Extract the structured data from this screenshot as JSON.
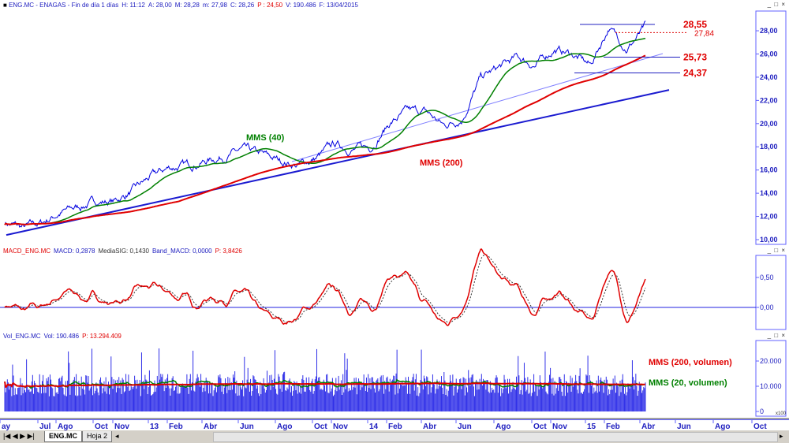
{
  "window": {
    "controls": "_ □ ×"
  },
  "price_panel": {
    "header": [
      {
        "t": "ENG.MC - ENAGAS - Fin de día 1 días",
        "c": "#2020c0"
      },
      {
        "t": "H: 11:12",
        "c": "#2020c0"
      },
      {
        "t": "A: 28,00",
        "c": "#2020c0"
      },
      {
        "t": "M: 28,28",
        "c": "#2020c0"
      },
      {
        "t": "m: 27,98",
        "c": "#2020c0"
      },
      {
        "t": "C: 28,26",
        "c": "#2020c0"
      },
      {
        "t": "P : 24,50",
        "c": "#e00000"
      },
      {
        "t": "V: 190.486",
        "c": "#2020c0"
      },
      {
        "t": "F: 13/04/2015",
        "c": "#2020c0"
      }
    ],
    "y_ticks": [
      "28,00",
      "26,00",
      "24,00",
      "22,00",
      "20,00",
      "18,00",
      "16,00",
      "14,00",
      "12,00",
      "10,00"
    ],
    "labels": {
      "mms40": "MMS (40)",
      "mms200": "MMS (200)",
      "l1": "28,55",
      "l2": "27,84",
      "l3": "25,73",
      "l4": "24,37"
    }
  },
  "macd_panel": {
    "header": [
      {
        "t": "MACD_ENG.MC",
        "c": "#e00000"
      },
      {
        "t": "MACD: 0,2878",
        "c": "#2020c0"
      },
      {
        "t": "MediaSIG: 0,1430",
        "c": "#333"
      },
      {
        "t": "Band_MACD: 0,0000",
        "c": "#2020c0"
      },
      {
        "t": "P: 3,8426",
        "c": "#e00000"
      }
    ],
    "y_ticks": [
      "0,50",
      "0,00"
    ]
  },
  "vol_panel": {
    "header": [
      {
        "t": "Vol_ENG.MC",
        "c": "#2020c0"
      },
      {
        "t": "Vol: 190.486",
        "c": "#2020c0"
      },
      {
        "t": "P: 13.294.409",
        "c": "#e00000"
      }
    ],
    "y_ticks": [
      "20.000",
      "10.000",
      "0"
    ],
    "multiplier": "x100",
    "labels": {
      "mms200": "MMS (200, volumen)",
      "mms20": "MMS (20, volumen)"
    }
  },
  "x_axis": [
    "ay",
    "Jul",
    "Ago",
    "Oct",
    "Nov",
    "13",
    "Feb",
    "Abr",
    "Jun",
    "Ago",
    "Oct",
    "Nov",
    "14",
    "Feb",
    "Abr",
    "Jun",
    "Ago",
    "Oct",
    "Nov",
    "15",
    "Feb",
    "Abr",
    "Jun",
    "Ago",
    "Oct"
  ],
  "tabs": {
    "active": "ENG.MC",
    "other": "Hoja 2"
  },
  "colors": {
    "price": "#0000e0",
    "mms40": "#008000",
    "mms200": "#e00000",
    "trend": "#1a1ad0",
    "trend2": "#8080ff",
    "axis": "#6060ff"
  },
  "chart_data": {
    "type": "line",
    "price_monthly": [
      [
        "May 12",
        11.5
      ],
      [
        "Jun 12",
        11.0
      ],
      [
        "Jul 12",
        11.4
      ],
      [
        "Ago 12",
        12.3
      ],
      [
        "Sep 12",
        12.8
      ],
      [
        "Oct 12",
        13.3
      ],
      [
        "Nov 12",
        13.3
      ],
      [
        "Dic 12",
        14.2
      ],
      [
        "Ene 13",
        15.4
      ],
      [
        "Feb 13",
        16.2
      ],
      [
        "Mar 13",
        16.4
      ],
      [
        "Abr 13",
        16.8
      ],
      [
        "May 13",
        17.2
      ],
      [
        "Jun 13",
        17.7
      ],
      [
        "Jul 13",
        17.3
      ],
      [
        "Ago 13",
        16.8
      ],
      [
        "Sep 13",
        16.4
      ],
      [
        "Oct 13",
        17.0
      ],
      [
        "Nov 13",
        18.2
      ],
      [
        "Dic 13",
        17.8
      ],
      [
        "Ene 14",
        18.0
      ],
      [
        "Feb 14",
        20.0
      ],
      [
        "Mar 14",
        21.0
      ],
      [
        "Abr 14",
        21.0
      ],
      [
        "May 14",
        19.8
      ],
      [
        "Jun 14",
        20.5
      ],
      [
        "Jul 14",
        23.9
      ],
      [
        "Ago 14",
        24.8
      ],
      [
        "Sep 14",
        25.7
      ],
      [
        "Oct 14",
        25.0
      ],
      [
        "Nov 14",
        26.4
      ],
      [
        "Dic 14",
        26.0
      ],
      [
        "Ene 15",
        25.0
      ],
      [
        "Feb 15",
        28.3
      ],
      [
        "Mar 15",
        26.5
      ],
      [
        "Abr 15",
        28.26
      ]
    ],
    "ylim": [
      9,
      29.5
    ],
    "macd_ylim": [
      -0.4,
      0.85
    ],
    "vol_ylim": [
      0,
      28000
    ],
    "hlines": [
      28.55,
      27.84,
      25.73,
      24.37
    ],
    "trendline": [
      10.4,
      22.9
    ]
  }
}
